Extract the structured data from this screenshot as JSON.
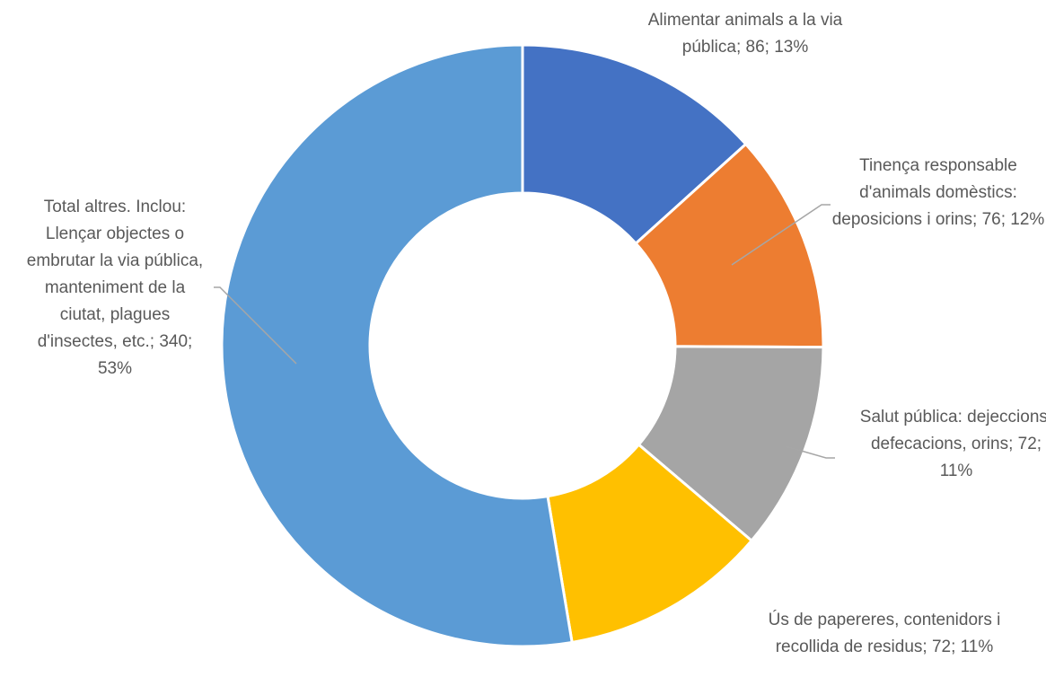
{
  "chart_data": {
    "type": "donut",
    "values": [
      86,
      76,
      72,
      72,
      340
    ],
    "value_labels": [
      "Alimentar animals a la via pública; 86; 13%",
      "Tinença responsable d'animals domèstics: deposicions i orins; 76; 12%",
      "Salut pública: dejeccions, defecacions, orins; 72; 11%",
      "Ús de papereres, contenidors i recollida de residus; 72; 11%",
      "Total altres. Inclou: Llençar objectes o embrutar la via pública, manteniment de la ciutat, plagues d'insectes, etc.; 340; 53%"
    ],
    "colors": [
      "#4472c4",
      "#ed7d31",
      "#a5a5a5",
      "#ffc000",
      "#5b9bd5"
    ]
  }
}
